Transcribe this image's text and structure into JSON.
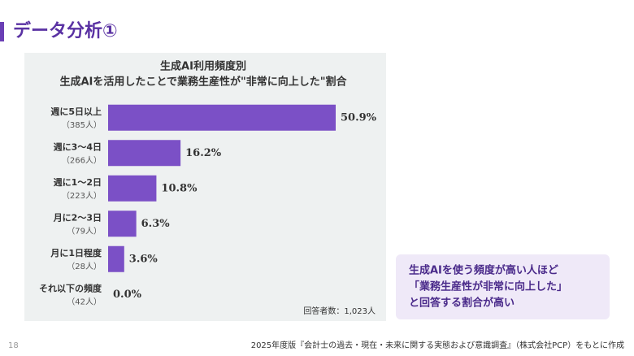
{
  "header": {
    "title": "データ分析①"
  },
  "chart_data": {
    "type": "bar",
    "orientation": "horizontal",
    "title": [
      "生成AI利用頻度別",
      "生成AIを活用したことで業務生産性が\"非常に向上した\"割合"
    ],
    "categories": [
      "週に5日以上",
      "週に3〜4日",
      "週に1〜2日",
      "月に2〜3日",
      "月に1日程度",
      "それ以下の頻度"
    ],
    "category_notes": [
      "（385人）",
      "（266人）",
      "（223人）",
      "（79人）",
      "（28人）",
      "（42人）"
    ],
    "values": [
      50.9,
      16.2,
      10.8,
      6.3,
      3.6,
      0.0
    ],
    "value_labels": [
      "50.9%",
      "16.2%",
      "10.8%",
      "6.3%",
      "3.6%",
      "0.0%"
    ],
    "color": "#7b50c6",
    "note": "回答者数：1,023人"
  },
  "callout": {
    "lines": [
      "生成AIを使う頻度が高い人ほど",
      "「業務生産性が非常に向上した」",
      "と回答する割合が高い"
    ]
  },
  "footer": {
    "page": "18",
    "source": "2025年度版『会計士の過去・現在・未来に関する実態および意識調査』（株式会社PCP）をもとに作成"
  }
}
